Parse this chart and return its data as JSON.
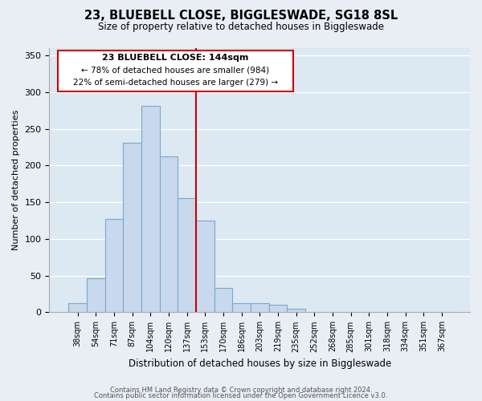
{
  "title": "23, BLUEBELL CLOSE, BIGGLESWADE, SG18 8SL",
  "subtitle": "Size of property relative to detached houses in Biggleswade",
  "xlabel": "Distribution of detached houses by size in Biggleswade",
  "ylabel": "Number of detached properties",
  "bar_labels": [
    "38sqm",
    "54sqm",
    "71sqm",
    "87sqm",
    "104sqm",
    "120sqm",
    "137sqm",
    "153sqm",
    "170sqm",
    "186sqm",
    "203sqm",
    "219sqm",
    "235sqm",
    "252sqm",
    "268sqm",
    "285sqm",
    "301sqm",
    "318sqm",
    "334sqm",
    "351sqm",
    "367sqm"
  ],
  "bar_heights": [
    13,
    46,
    127,
    231,
    281,
    213,
    156,
    125,
    33,
    12,
    12,
    10,
    5,
    0,
    0,
    0,
    0,
    0,
    0,
    0,
    0
  ],
  "bar_color": "#c8d8ed",
  "bar_edge_color": "#7aa8cc",
  "vline_color": "#cc0000",
  "ylim": [
    0,
    360
  ],
  "yticks": [
    0,
    50,
    100,
    150,
    200,
    250,
    300,
    350
  ],
  "annotation_title": "23 BLUEBELL CLOSE: 144sqm",
  "annotation_line1": "← 78% of detached houses are smaller (984)",
  "annotation_line2": "22% of semi-detached houses are larger (279) →",
  "footnote1": "Contains HM Land Registry data © Crown copyright and database right 2024.",
  "footnote2": "Contains public sector information licensed under the Open Government Licence v3.0.",
  "bg_color": "#e8eef4",
  "plot_bg_color": "#dce8f2"
}
